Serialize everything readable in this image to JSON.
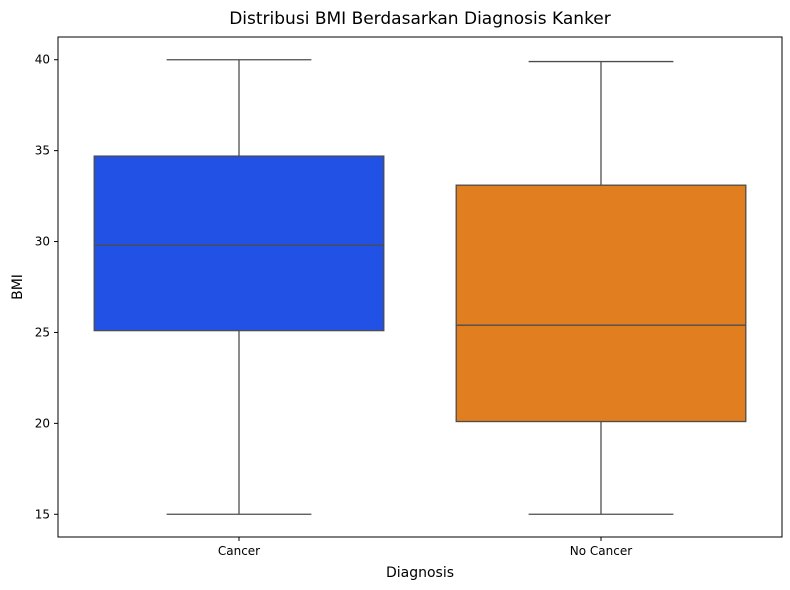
{
  "chart_data": {
    "type": "box",
    "title": "Distribusi BMI Berdasarkan Diagnosis Kanker",
    "xlabel": "Diagnosis",
    "ylabel": "BMI",
    "ylim": [
      13.75,
      41.25
    ],
    "yticks": [
      15,
      20,
      25,
      30,
      35,
      40
    ],
    "grid": false,
    "categories": [
      "Cancer",
      "No Cancer"
    ],
    "boxes": [
      {
        "category": "Cancer",
        "min": 15.0,
        "q1": 25.1,
        "median": 29.8,
        "q3": 34.7,
        "max": 40.0,
        "color": "#2251e6"
      },
      {
        "category": "No Cancer",
        "min": 15.0,
        "q1": 20.1,
        "median": 25.4,
        "q3": 33.1,
        "max": 39.9,
        "color": "#e07e20"
      }
    ]
  },
  "colors": {
    "line": "#4d4d4d",
    "axis": "#000000"
  }
}
